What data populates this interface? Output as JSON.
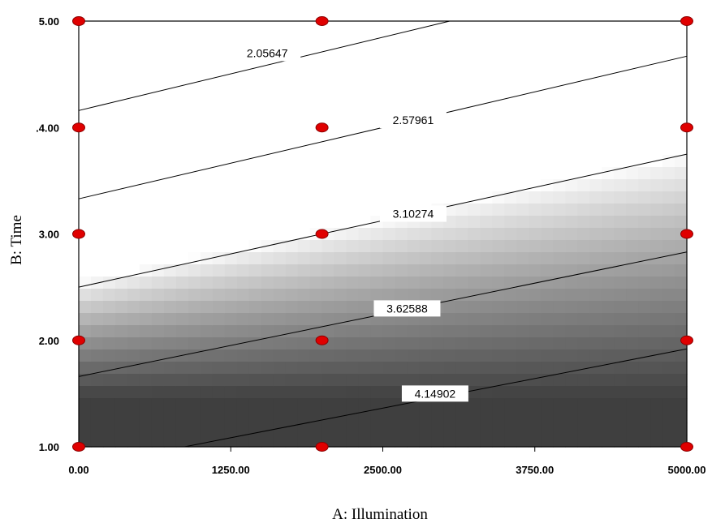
{
  "chart_data": {
    "type": "contour",
    "xlabel": "A: Illumination",
    "ylabel": "B: Time",
    "xlim": [
      0,
      5000
    ],
    "ylim": [
      1,
      5
    ],
    "x_ticks": [
      "0.00",
      "1250.00",
      "2500.00",
      "3750.00",
      "5000.00"
    ],
    "y_ticks": [
      "1.00",
      "2.00",
      "3.00",
      ".4.00",
      "5.00"
    ],
    "grid": false,
    "contours": [
      {
        "level": 2.05647,
        "label": "2.05647",
        "points": [
          [
            0,
            4.16
          ],
          [
            3050,
            5.0
          ]
        ],
        "label_at": [
          1550,
          4.7
        ]
      },
      {
        "level": 2.57961,
        "label": "2.57961",
        "points": [
          [
            0,
            3.33
          ],
          [
            5000,
            4.67
          ]
        ],
        "label_at": [
          2750,
          4.07
        ]
      },
      {
        "level": 3.10274,
        "label": "3.10274",
        "points": [
          [
            0,
            2.5
          ],
          [
            5000,
            3.75
          ]
        ],
        "label_at": [
          2750,
          3.19
        ]
      },
      {
        "level": 3.62588,
        "label": "3.62588",
        "points": [
          [
            0,
            1.66
          ],
          [
            5000,
            2.83
          ]
        ],
        "label_at": [
          2700,
          2.3
        ]
      },
      {
        "level": 4.14902,
        "label": "4.14902",
        "points": [
          [
            870,
            1.0
          ],
          [
            5000,
            1.92
          ]
        ],
        "label_at": [
          2930,
          1.5
        ]
      }
    ],
    "design_points": [
      {
        "x": 0,
        "y": 1
      },
      {
        "x": 0,
        "y": 2
      },
      {
        "x": 0,
        "y": 3
      },
      {
        "x": 0,
        "y": 4
      },
      {
        "x": 0,
        "y": 5
      },
      {
        "x": 2000,
        "y": 1
      },
      {
        "x": 2000,
        "y": 2
      },
      {
        "x": 2000,
        "y": 3
      },
      {
        "x": 2000,
        "y": 4
      },
      {
        "x": 2000,
        "y": 5
      },
      {
        "x": 5000,
        "y": 1
      },
      {
        "x": 5000,
        "y": 2
      },
      {
        "x": 5000,
        "y": 3
      },
      {
        "x": 5000,
        "y": 4
      },
      {
        "x": 5000,
        "y": 5
      }
    ],
    "colors": {
      "point": "#e00000",
      "point_stroke": "#8b0000",
      "shade_dark": "#3f3f3f",
      "shade_light": "#ffffff",
      "line": "#000000"
    }
  }
}
